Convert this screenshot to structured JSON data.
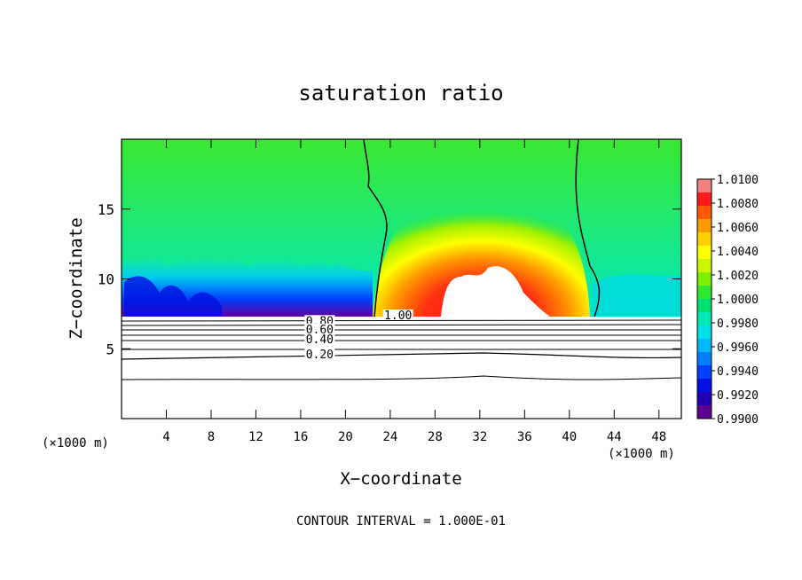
{
  "chart_data": {
    "type": "heatmap",
    "title": "saturation ratio",
    "xlabel": "X−coordinate",
    "ylabel": "Z−coordinate",
    "x_unit_label": "(×1000 m)",
    "footer": "CONTOUR INTERVAL = 1.000E-01",
    "xlim": [
      0,
      50
    ],
    "ylim": [
      0,
      20
    ],
    "x_ticks": [
      4,
      8,
      12,
      16,
      20,
      24,
      28,
      32,
      36,
      40,
      44,
      48
    ],
    "y_ticks": [
      5,
      10,
      15
    ],
    "colorbar": {
      "labels": [
        "1.0100",
        "1.0080",
        "1.0060",
        "1.0040",
        "1.0020",
        "1.0000",
        "0.9980",
        "0.9960",
        "0.9940",
        "0.9920",
        "0.9900"
      ],
      "range": [
        0.99,
        1.01
      ],
      "colors": [
        "#f08080",
        "#ff1a1a",
        "#ff5a00",
        "#ff9900",
        "#ffd000",
        "#ffff00",
        "#c8f500",
        "#7cf000",
        "#2ee830",
        "#00e070",
        "#00e8b4",
        "#00e0e8",
        "#00b8ff",
        "#0080ff",
        "#0040ff",
        "#0010e0",
        "#2000b0",
        "#600090"
      ]
    },
    "contour_labels": [
      {
        "text": "1.00",
        "x": 24.7,
        "y": 7.3
      },
      {
        "text": "0.80",
        "x": 17.7,
        "y": 6.9
      },
      {
        "text": "0.60",
        "x": 17.7,
        "y": 6.3
      },
      {
        "text": "0.40",
        "x": 17.7,
        "y": 5.6
      },
      {
        "text": "0.20",
        "x": 17.7,
        "y": 4.5
      }
    ]
  }
}
